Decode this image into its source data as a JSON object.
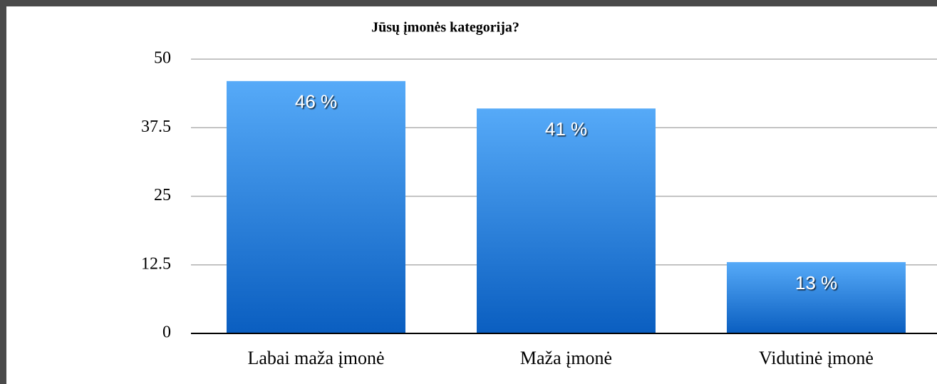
{
  "chart_data": {
    "type": "bar",
    "title": "Jūsų įmonės kategorija?",
    "categories": [
      "Labai maža įmonė",
      "Maža įmonė",
      "Vidutinė įmonė"
    ],
    "values": [
      46,
      41,
      13
    ],
    "value_labels": [
      "46 %",
      "41 %",
      "13 %"
    ],
    "color": "#2f86e0",
    "ylim": [
      0,
      50
    ],
    "yticks": [
      0,
      12.5,
      25,
      37.5,
      50
    ],
    "grid": true
  }
}
